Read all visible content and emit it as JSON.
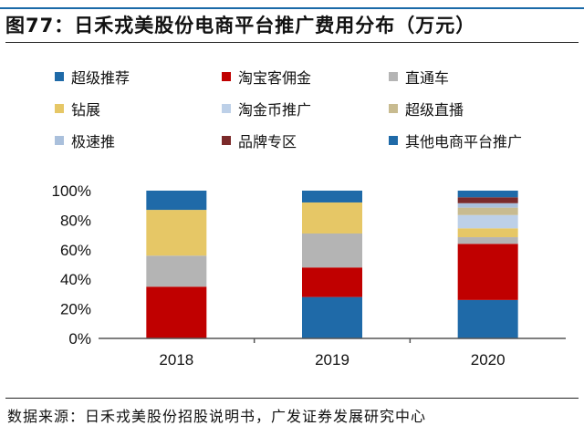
{
  "title": "图77：日禾戎美股份电商平台推广费用分布（万元）",
  "source": "数据来源：日禾戎美股份招股说明书，广发证券发展研究中心",
  "chart_data": {
    "type": "bar",
    "stacked": true,
    "categories": [
      "2018",
      "2019",
      "2020"
    ],
    "ylim": [
      0,
      100
    ],
    "yticks": [
      "0%",
      "20%",
      "40%",
      "60%",
      "80%",
      "100%"
    ],
    "legend_position": "top",
    "series": [
      {
        "name": "超级推荐",
        "color": "#1f6aa8",
        "values": [
          0,
          28,
          26
        ]
      },
      {
        "name": "淘宝客佣金",
        "color": "#c00000",
        "values": [
          35,
          20,
          38
        ]
      },
      {
        "name": "直通车",
        "color": "#b4b4b4",
        "values": [
          21,
          23,
          4.5
        ]
      },
      {
        "name": "钻展",
        "color": "#e6c766",
        "values": [
          31,
          21,
          6
        ]
      },
      {
        "name": "淘金币推广",
        "color": "#bdd0e8",
        "values": [
          0,
          0,
          9
        ]
      },
      {
        "name": "超级直播",
        "color": "#c8bb90",
        "values": [
          0,
          0,
          5
        ]
      },
      {
        "name": "极速推",
        "color": "#aac0dc",
        "values": [
          0,
          0,
          3
        ]
      },
      {
        "name": "品牌专区",
        "color": "#7b2a2a",
        "values": [
          0,
          0,
          4
        ]
      },
      {
        "name": "其他电商平台推广",
        "color": "#1f6aa8",
        "values": [
          13,
          8,
          4.5
        ]
      }
    ]
  }
}
